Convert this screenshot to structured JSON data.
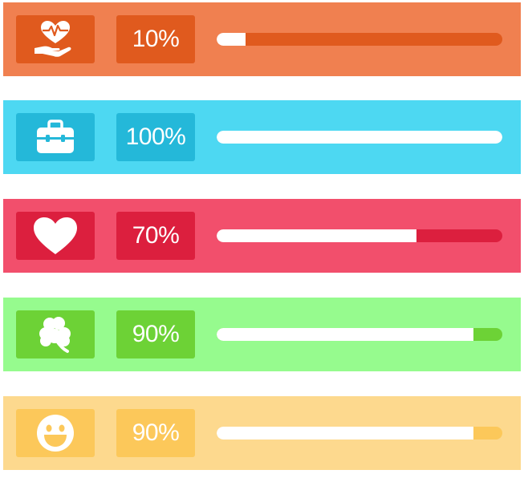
{
  "rows": [
    {
      "key": "health",
      "icon": "heart-hand-icon",
      "label": "10%",
      "progress": 0.1,
      "colors": {
        "panel": "#f08050",
        "box": "#e05a1e",
        "track": "#e05a1e"
      }
    },
    {
      "key": "work",
      "icon": "briefcase-icon",
      "label": "100%",
      "progress": 1.0,
      "colors": {
        "panel": "#4dd8f2",
        "box": "#24b8d9",
        "track": "#24b8d9"
      }
    },
    {
      "key": "love",
      "icon": "heart-icon",
      "label": "70%",
      "progress": 0.7,
      "colors": {
        "panel": "#f24f6c",
        "box": "#dc1f3e",
        "track": "#dc1f3e"
      }
    },
    {
      "key": "luck",
      "icon": "clover-icon",
      "label": "90%",
      "progress": 0.9,
      "colors": {
        "panel": "#96fb8e",
        "box": "#6dd236",
        "track": "#6dd236"
      }
    },
    {
      "key": "happiness",
      "icon": "smiley-icon",
      "label": "90%",
      "progress": 0.9,
      "colors": {
        "panel": "#fdd98e",
        "box": "#fcc85a",
        "track": "#fcc85a"
      }
    }
  ]
}
